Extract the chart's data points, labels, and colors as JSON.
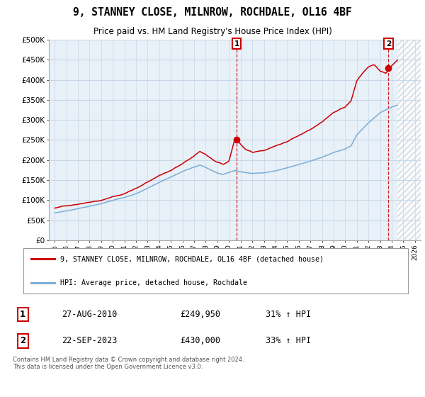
{
  "title": "9, STANNEY CLOSE, MILNROW, ROCHDALE, OL16 4BF",
  "subtitle": "Price paid vs. HM Land Registry's House Price Index (HPI)",
  "ylabel_ticks": [
    "£0",
    "£50K",
    "£100K",
    "£150K",
    "£200K",
    "£250K",
    "£300K",
    "£350K",
    "£400K",
    "£450K",
    "£500K"
  ],
  "ytick_values": [
    0,
    50000,
    100000,
    150000,
    200000,
    250000,
    300000,
    350000,
    400000,
    450000,
    500000
  ],
  "ylim": [
    0,
    500000
  ],
  "xlim_start": 1994.5,
  "xlim_end": 2026.5,
  "xtick_years": [
    1995,
    1996,
    1997,
    1998,
    1999,
    2000,
    2001,
    2002,
    2003,
    2004,
    2005,
    2006,
    2007,
    2008,
    2009,
    2010,
    2011,
    2012,
    2013,
    2014,
    2015,
    2016,
    2017,
    2018,
    2019,
    2020,
    2021,
    2022,
    2023,
    2024,
    2025,
    2026
  ],
  "sale1_x": 2010.65,
  "sale1_y": 249950,
  "sale2_x": 2023.72,
  "sale2_y": 430000,
  "hatch_start": 2024.5,
  "annotation1_date": "27-AUG-2010",
  "annotation1_price": "£249,950",
  "annotation1_hpi": "31% ↑ HPI",
  "annotation2_date": "22-SEP-2023",
  "annotation2_price": "£430,000",
  "annotation2_hpi": "33% ↑ HPI",
  "legend_line1": "9, STANNEY CLOSE, MILNROW, ROCHDALE, OL16 4BF (detached house)",
  "legend_line2": "HPI: Average price, detached house, Rochdale",
  "footer": "Contains HM Land Registry data © Crown copyright and database right 2024.\nThis data is licensed under the Open Government Licence v3.0.",
  "red_color": "#cc0000",
  "blue_color": "#7aaed6",
  "plot_bg": "#e8f0f8",
  "grid_color": "#c8d8e8",
  "hatch_color": "#c0c8d0"
}
